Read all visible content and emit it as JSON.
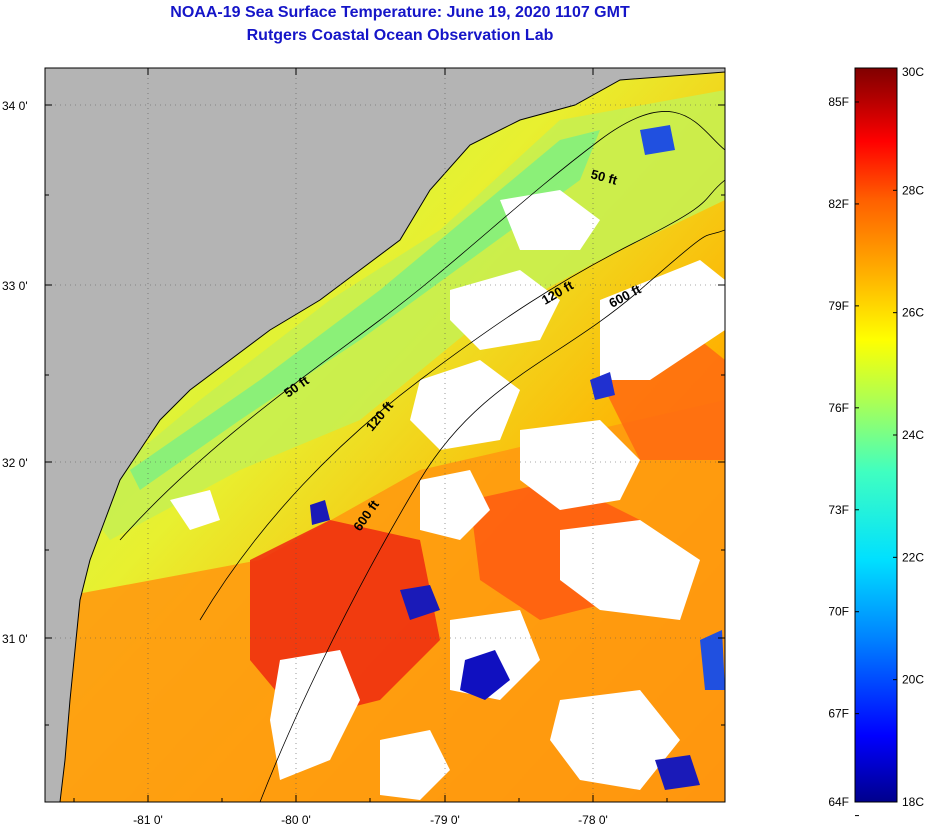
{
  "title": "NOAA-19 Sea Surface Temperature:  June 19, 2020 1107 GMT",
  "subtitle": "Rutgers Coastal Ocean Observation Lab",
  "map": {
    "lat_labels": [
      "34 0'",
      "33 0'",
      "32 0'",
      "31 0'"
    ],
    "lon_labels": [
      "-81 0'",
      "-80 0'",
      "-79 0'",
      "-78 0'"
    ],
    "contours": [
      {
        "label": "50 ft"
      },
      {
        "label": "50 ft"
      },
      {
        "label": "120 ft"
      },
      {
        "label": "120 ft"
      },
      {
        "label": "600 ft"
      },
      {
        "label": "600 ft"
      }
    ],
    "land_color": "#b4b4b4",
    "cloud_color": "#ffffff"
  },
  "colorbar": {
    "fahrenheit_labels": [
      "85F",
      "82F",
      "79F",
      "76F",
      "73F",
      "70F",
      "67F",
      "64F"
    ],
    "celsius_labels": [
      "30C",
      "28C",
      "26C",
      "24C",
      "22C",
      "20C",
      "18C"
    ],
    "min_c": 18,
    "max_c": 30,
    "colors": [
      "#00008c",
      "#0000ff",
      "#0080ff",
      "#00e0ff",
      "#40ffc0",
      "#b0ff50",
      "#ffff00",
      "#ffb000",
      "#ff6000",
      "#ff0000",
      "#b00000",
      "#800000"
    ]
  }
}
